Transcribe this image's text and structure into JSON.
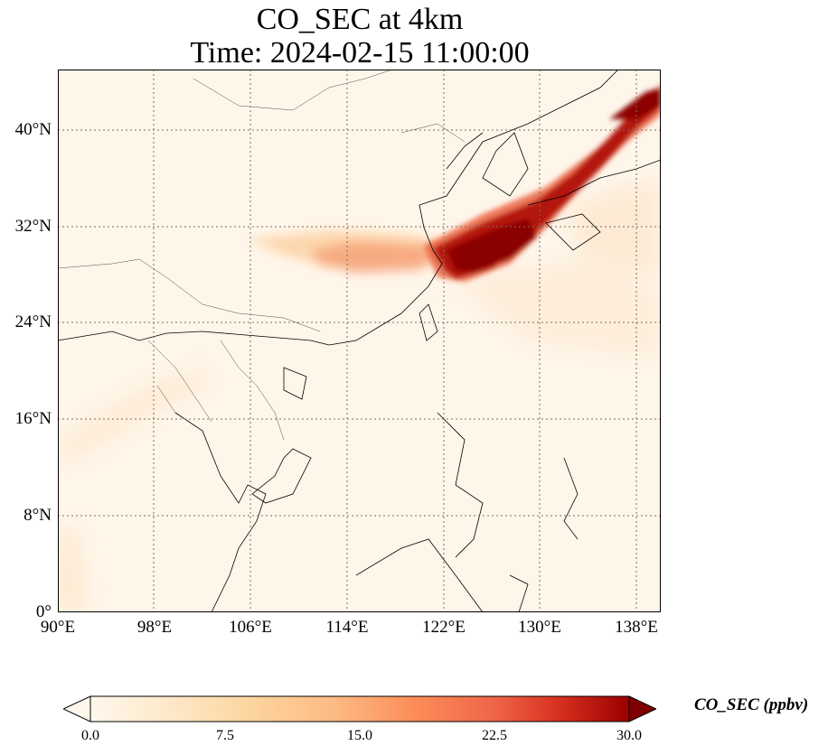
{
  "title": {
    "line1": "CO_SEC at 4km",
    "line2": "Time: 2024-02-15 11:00:00"
  },
  "map": {
    "lon_range": [
      90,
      140
    ],
    "lat_range": [
      0,
      45
    ],
    "lon_ticks": [
      "90°E",
      "98°E",
      "106°E",
      "114°E",
      "122°E",
      "130°E",
      "138°E"
    ],
    "lat_ticks": [
      "0°",
      "8°N",
      "16°N",
      "24°N",
      "32°N",
      "40°N"
    ],
    "gridlines": "dotted",
    "plume_color": "#8b0000",
    "background_color": "#fff5e8"
  },
  "colorbar": {
    "label": "CO_SEC (ppbv)",
    "ticks": [
      "0.0",
      "7.5",
      "15.0",
      "22.5",
      "30.0"
    ],
    "range": [
      0,
      30
    ],
    "colormap": "OrRd",
    "extend": "both"
  }
}
